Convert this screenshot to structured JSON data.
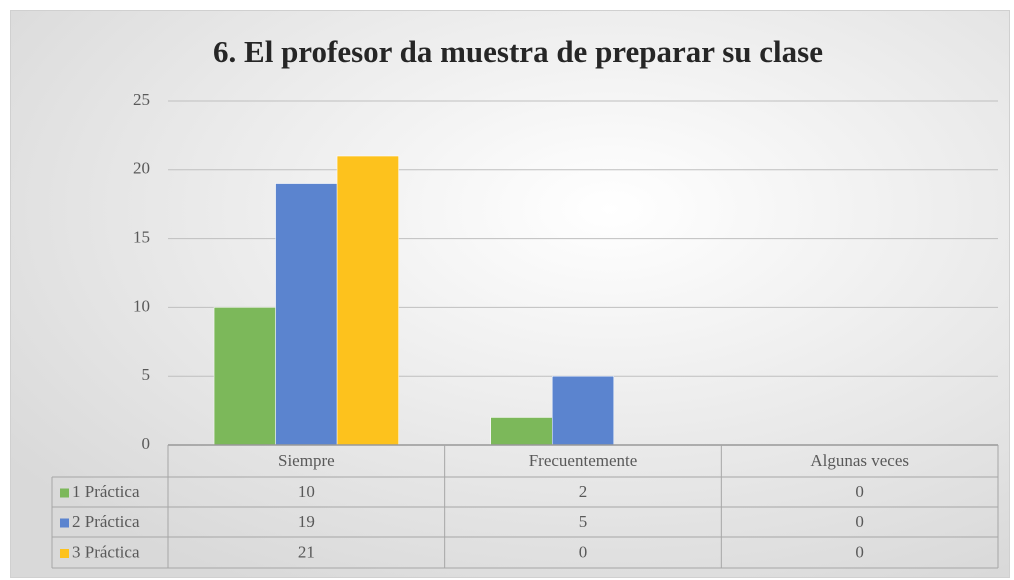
{
  "chart_data": {
    "type": "bar",
    "title": "6. El profesor da muestra de preparar su clase",
    "categories": [
      "Siempre",
      "Frecuentemente",
      "Algunas veces"
    ],
    "series": [
      {
        "name": "1 Práctica",
        "color": "#7cb85a",
        "values": [
          10,
          2,
          0
        ]
      },
      {
        "name": "2 Práctica",
        "color": "#5b84cf",
        "values": [
          19,
          5,
          0
        ]
      },
      {
        "name": "3 Práctica",
        "color": "#fdc21d",
        "values": [
          21,
          0,
          0
        ]
      }
    ],
    "ylim": [
      0,
      25
    ],
    "yticks": [
      0,
      5,
      10,
      15,
      20,
      25
    ],
    "grid": true,
    "data_table": true
  }
}
